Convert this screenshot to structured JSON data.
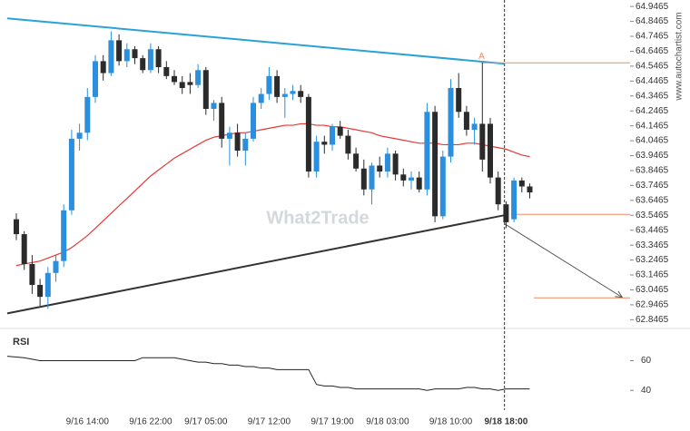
{
  "chart_data": {
    "type": "candlestick",
    "categories": [
      null,
      null,
      null,
      null,
      null,
      null,
      null,
      null,
      null,
      "9/16 14:00",
      null,
      null,
      null,
      null,
      null,
      null,
      null,
      "9/16 22:00",
      null,
      null,
      null,
      null,
      null,
      null,
      "9/17 05:00",
      null,
      null,
      null,
      null,
      null,
      null,
      null,
      "9/17 12:00",
      null,
      null,
      null,
      null,
      null,
      null,
      null,
      "9/17 19:00",
      null,
      null,
      null,
      null,
      null,
      null,
      "9/18 03:00",
      null,
      null,
      null,
      null,
      null,
      null,
      null,
      "9/18 10:00",
      null,
      null,
      null,
      null,
      null,
      null,
      "9/18 18:00",
      null,
      null,
      null
    ],
    "open": [
      63.52,
      63.42,
      63.22,
      63.08,
      63.0,
      63.16,
      63.24,
      63.58,
      64.06,
      64.1,
      64.34,
      64.58,
      64.5,
      64.72,
      64.58,
      64.66,
      64.6,
      64.52,
      64.66,
      64.54,
      64.48,
      64.44,
      64.44,
      64.42,
      64.52,
      64.26,
      64.3,
      64.06,
      64.1,
      63.98,
      64.06,
      64.3,
      64.36,
      64.48,
      64.34,
      64.36,
      64.38,
      64.34,
      63.84,
      64.04,
      64.02,
      64.14,
      64.08,
      63.96,
      63.86,
      63.72,
      63.88,
      63.84,
      63.96,
      63.82,
      63.78,
      63.8,
      63.72,
      64.24,
      63.54,
      63.94,
      64.4,
      64.24,
      64.12,
      64.16,
      64.16,
      63.8,
      63.62,
      63.52,
      63.78,
      63.74
    ],
    "high": [
      63.56,
      63.44,
      63.28,
      63.12,
      63.2,
      63.28,
      63.62,
      64.12,
      64.16,
      64.4,
      64.62,
      64.62,
      64.78,
      64.76,
      64.7,
      64.68,
      64.62,
      64.7,
      64.68,
      64.58,
      64.52,
      64.48,
      64.5,
      64.56,
      64.54,
      64.32,
      64.34,
      64.14,
      64.16,
      64.1,
      64.34,
      64.4,
      64.54,
      64.52,
      64.4,
      64.42,
      64.42,
      64.36,
      64.08,
      64.08,
      64.16,
      64.18,
      64.12,
      64.0,
      63.92,
      63.9,
      63.94,
      64.0,
      63.98,
      63.86,
      63.84,
      63.84,
      64.3,
      64.28,
      63.98,
      64.46,
      64.5,
      64.28,
      64.2,
      64.57,
      64.2,
      63.84,
      63.64,
      63.8,
      63.8,
      63.76
    ],
    "low": [
      63.38,
      63.18,
      63.02,
      62.94,
      62.92,
      63.1,
      63.2,
      63.55,
      63.98,
      64.05,
      64.3,
      64.45,
      64.48,
      64.55,
      64.54,
      64.56,
      64.5,
      64.5,
      64.5,
      64.46,
      64.42,
      64.36,
      64.36,
      64.4,
      64.22,
      64.18,
      64.0,
      63.88,
      63.94,
      63.88,
      64.04,
      64.26,
      64.32,
      64.3,
      64.2,
      64.32,
      64.3,
      63.8,
      63.8,
      63.96,
      63.98,
      64.06,
      63.92,
      63.84,
      63.68,
      63.62,
      63.8,
      63.8,
      63.78,
      63.74,
      63.72,
      63.7,
      63.68,
      63.5,
      63.52,
      63.9,
      64.2,
      64.08,
      64.02,
      63.84,
      63.76,
      63.58,
      63.46,
      63.5,
      63.7,
      63.66
    ],
    "close": [
      63.42,
      63.22,
      63.08,
      63.0,
      63.16,
      63.24,
      63.58,
      64.06,
      64.1,
      64.34,
      64.58,
      64.5,
      64.72,
      64.58,
      64.66,
      64.6,
      64.52,
      64.66,
      64.54,
      64.48,
      64.44,
      64.4,
      64.42,
      64.52,
      64.26,
      64.3,
      64.06,
      64.1,
      63.98,
      64.06,
      64.3,
      64.36,
      64.48,
      64.34,
      64.36,
      64.38,
      64.34,
      63.84,
      64.04,
      64.02,
      64.14,
      64.08,
      63.96,
      63.86,
      63.72,
      63.88,
      63.84,
      63.96,
      63.82,
      63.78,
      63.8,
      63.72,
      64.24,
      63.54,
      63.94,
      64.4,
      64.24,
      64.12,
      64.16,
      63.92,
      63.8,
      63.62,
      63.5,
      63.78,
      63.74,
      63.7
    ],
    "up_color": "#2b8fde",
    "down_color": "#2b2b2b",
    "ylim": [
      62.8,
      64.99
    ],
    "yticks": [
      64.9465,
      64.8465,
      64.7465,
      64.6465,
      64.5465,
      64.4465,
      64.3465,
      64.2465,
      64.1465,
      64.0465,
      63.9465,
      63.8465,
      63.7465,
      63.6465,
      63.5465,
      63.4465,
      63.3465,
      63.2465,
      63.1465,
      63.0465,
      62.9465,
      62.8465
    ],
    "moving_average": {
      "color": "#e53935",
      "values": [
        63.21,
        63.22,
        63.23,
        63.24,
        63.26,
        63.28,
        63.3,
        63.33,
        63.37,
        63.41,
        63.46,
        63.51,
        63.56,
        63.61,
        63.66,
        63.71,
        63.76,
        63.81,
        63.85,
        63.89,
        63.93,
        63.96,
        63.99,
        64.02,
        64.05,
        64.07,
        64.08,
        64.09,
        64.1,
        64.1,
        64.11,
        64.12,
        64.13,
        64.14,
        64.15,
        64.15,
        64.16,
        64.16,
        64.15,
        64.15,
        64.14,
        64.14,
        64.13,
        64.12,
        64.11,
        64.1,
        64.08,
        64.07,
        64.06,
        64.05,
        64.04,
        64.03,
        64.03,
        64.03,
        64.02,
        64.02,
        64.02,
        64.03,
        64.03,
        64.02,
        64.01,
        64.0,
        63.99,
        63.97,
        63.95,
        63.94
      ]
    },
    "trendlines": [
      {
        "color": "#29a3d6",
        "start": [
          -1.15,
          64.867
        ],
        "end": [
          61.8,
          64.563
        ]
      },
      {
        "color": "#333333",
        "start": [
          -1.15,
          62.889
        ],
        "end": [
          61.8,
          63.547
        ]
      }
    ],
    "forecast_arrow": {
      "color": "#555555",
      "start": [
        61.8,
        63.49
      ],
      "end": [
        76.7,
        62.997
      ]
    },
    "levels": [
      {
        "color": "#f08a5d",
        "price": 64.569,
        "from": 58.9,
        "to": 78.4
      },
      {
        "color": "#f08a5d",
        "price": 63.553,
        "from": 62.6,
        "to": 78.4
      },
      {
        "color": "#f08a5d",
        "price": 62.993,
        "from": 65.5,
        "to": 78.4
      }
    ],
    "marker": {
      "label": "A",
      "index": 58.9,
      "price": 64.61
    },
    "current_time_index": 61.8,
    "rsi": {
      "title": "RSI",
      "color": "#222222",
      "ylim": [
        31,
        78
      ],
      "yticks": [
        60,
        40
      ],
      "values": [
        63,
        62,
        61,
        60,
        60,
        60,
        60,
        60,
        60,
        60,
        60,
        60,
        60,
        60,
        60,
        60,
        62,
        62,
        62,
        62,
        62,
        61,
        60,
        59,
        59,
        58,
        58,
        57,
        57,
        56,
        56,
        55,
        55,
        54,
        54,
        54,
        54,
        54,
        44,
        43,
        43,
        42,
        42,
        41,
        41,
        41,
        41,
        41,
        41,
        41,
        41,
        41,
        40,
        41,
        41,
        41,
        41,
        42,
        42,
        41,
        41,
        40,
        41,
        41,
        41,
        41
      ]
    },
    "watermark": "What2Trade",
    "source": "www.autochartist.com"
  }
}
